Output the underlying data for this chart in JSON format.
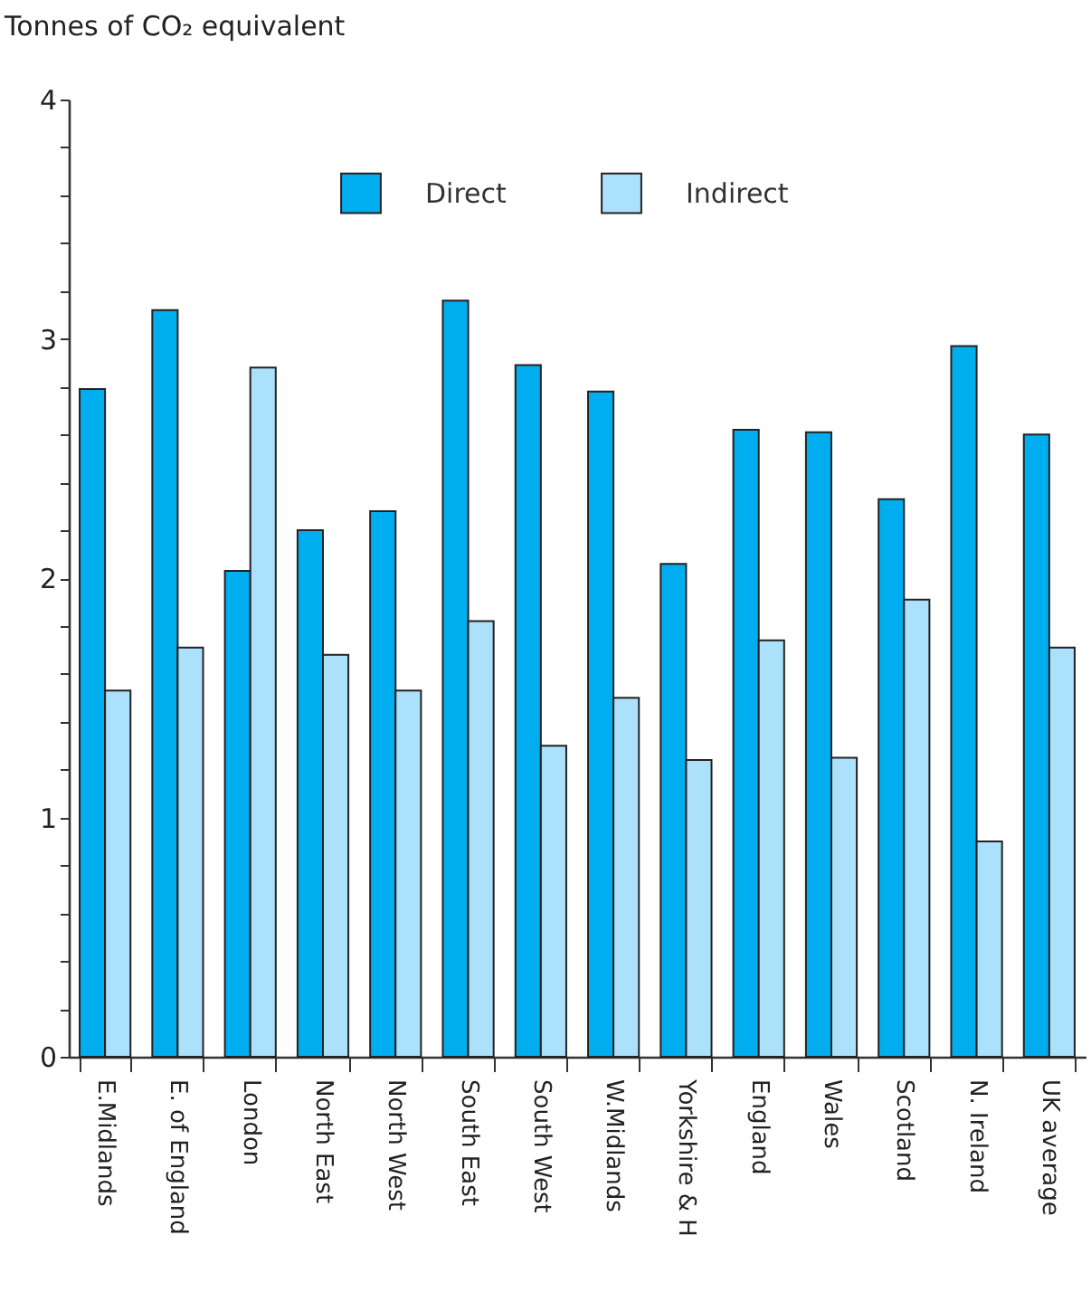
{
  "chart_data": {
    "type": "bar",
    "ylabel": "Tonnes of CO₂ equivalent",
    "categories": [
      "E.Midlands",
      "E. of England",
      "London",
      "North East",
      "North West",
      "South East",
      "South West",
      "W.Midlands",
      "Yorkshire & H",
      "England",
      "Wales",
      "Scotland",
      "N. Ireland",
      "UK average"
    ],
    "series": [
      {
        "name": "Direct",
        "color": "#00aeef",
        "values": [
          2.79,
          3.12,
          2.03,
          2.2,
          2.28,
          3.16,
          2.89,
          2.78,
          2.06,
          2.62,
          2.61,
          2.33,
          2.97,
          2.6
        ]
      },
      {
        "name": "Indirect",
        "color": "#abe1fa",
        "values": [
          1.53,
          1.71,
          2.88,
          1.68,
          1.53,
          1.82,
          1.3,
          1.5,
          1.24,
          1.74,
          1.25,
          1.91,
          0.9,
          1.71
        ]
      }
    ],
    "ylim": [
      0,
      4
    ],
    "yticks": [
      0,
      {
        "value": 0.2,
        "label": null
      },
      {
        "value": 0.4,
        "label": null
      },
      {
        "value": 0.6,
        "label": null
      },
      {
        "value": 0.8,
        "label": null
      },
      1,
      {
        "value": 1.2,
        "label": null
      },
      {
        "value": 1.4,
        "label": null
      },
      {
        "value": 1.6,
        "label": null
      },
      {
        "value": 1.8,
        "label": null
      },
      2,
      {
        "value": 2.2,
        "label": null
      },
      {
        "value": 2.4,
        "label": null
      },
      {
        "value": 2.6,
        "label": null
      },
      {
        "value": 2.8,
        "label": null
      },
      3,
      {
        "value": 3.2,
        "label": null
      },
      {
        "value": 3.4,
        "label": null
      },
      {
        "value": 3.6,
        "label": null
      },
      {
        "value": 3.8,
        "label": null
      },
      4
    ],
    "grid": false,
    "legend": "top"
  }
}
